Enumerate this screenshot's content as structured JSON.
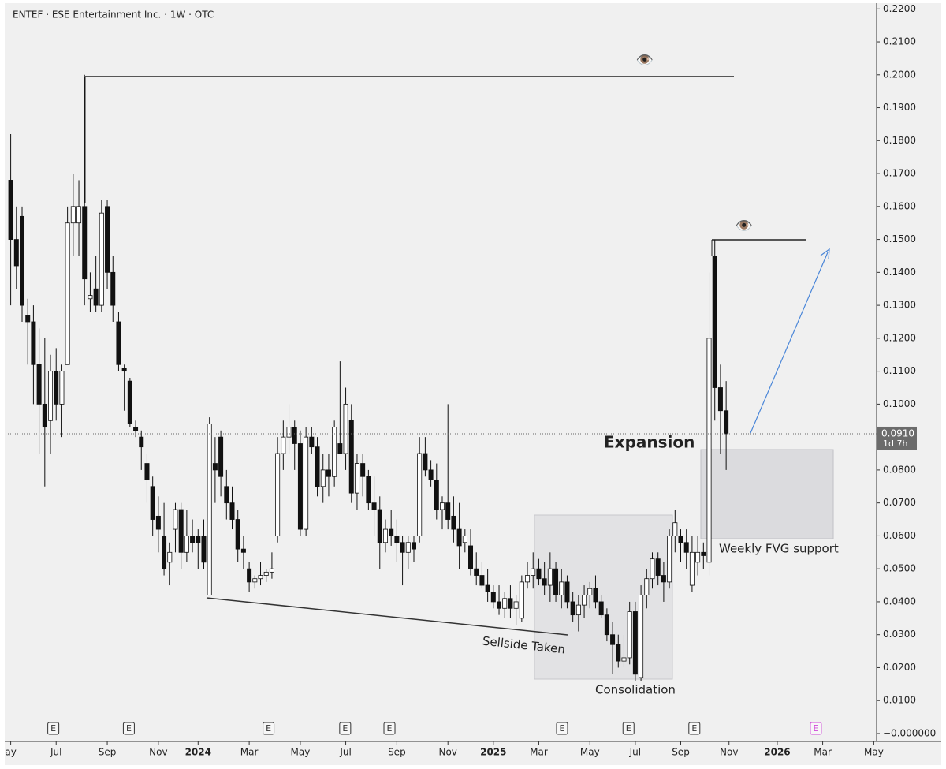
{
  "chart_data": {
    "type": "candlestick",
    "title": "ENTEF · ESE Entertainment Inc. · 1W · OTC",
    "open": [
      0.168,
      0.15,
      0.157,
      0.127,
      0.125,
      0.112,
      0.1,
      0.095,
      0.11,
      0.1,
      0.112,
      0.155,
      0.155,
      0.16,
      0.132,
      0.135,
      0.13,
      0.16,
      0.14,
      0.125,
      0.111,
      0.107,
      0.093,
      0.09,
      0.082,
      0.075,
      0.066,
      0.06,
      0.052,
      0.062,
      0.068,
      0.055,
      0.06,
      0.06,
      0.06,
      0.042,
      0.082,
      0.09,
      0.075,
      0.07,
      0.065,
      0.056,
      0.05,
      0.046,
      0.047,
      0.048,
      0.049,
      0.06,
      0.085,
      0.09,
      0.093,
      0.088,
      0.062,
      0.09,
      0.087,
      0.075,
      0.08,
      0.078,
      0.088,
      0.085,
      0.095,
      0.073,
      0.082,
      0.078,
      0.07,
      0.068,
      0.058,
      0.062,
      0.06,
      0.058,
      0.055,
      0.058,
      0.06,
      0.085,
      0.08,
      0.077,
      0.068,
      0.07,
      0.066,
      0.062,
      0.058,
      0.057,
      0.05,
      0.048,
      0.045,
      0.043,
      0.04,
      0.038,
      0.041,
      0.038,
      0.035,
      0.046,
      0.048,
      0.05,
      0.047,
      0.045,
      0.05,
      0.042,
      0.046,
      0.04,
      0.036,
      0.039,
      0.042,
      0.044,
      0.04,
      0.036,
      0.03,
      0.027,
      0.022,
      0.023,
      0.037,
      0.017,
      0.042,
      0.047,
      0.053,
      0.048,
      0.046,
      0.06,
      0.06,
      0.058,
      0.045,
      0.052,
      0.055,
      0.052,
      0.145,
      0.105,
      0.098
    ],
    "high": [
      0.182,
      0.16,
      0.16,
      0.132,
      0.13,
      0.123,
      0.12,
      0.115,
      0.117,
      0.112,
      0.16,
      0.17,
      0.168,
      0.2,
      0.14,
      0.145,
      0.162,
      0.162,
      0.145,
      0.128,
      0.112,
      0.108,
      0.095,
      0.092,
      0.085,
      0.078,
      0.072,
      0.07,
      0.058,
      0.07,
      0.07,
      0.068,
      0.065,
      0.062,
      0.065,
      0.096,
      0.09,
      0.092,
      0.08,
      0.075,
      0.068,
      0.06,
      0.052,
      0.048,
      0.052,
      0.05,
      0.055,
      0.09,
      0.095,
      0.1,
      0.095,
      0.092,
      0.093,
      0.093,
      0.09,
      0.085,
      0.085,
      0.095,
      0.113,
      0.105,
      0.1,
      0.085,
      0.085,
      0.08,
      0.078,
      0.072,
      0.065,
      0.068,
      0.065,
      0.06,
      0.06,
      0.06,
      0.09,
      0.09,
      0.083,
      0.082,
      0.072,
      0.1,
      0.072,
      0.07,
      0.062,
      0.062,
      0.055,
      0.052,
      0.05,
      0.045,
      0.045,
      0.043,
      0.045,
      0.042,
      0.048,
      0.052,
      0.055,
      0.053,
      0.052,
      0.055,
      0.052,
      0.05,
      0.048,
      0.043,
      0.042,
      0.045,
      0.046,
      0.048,
      0.042,
      0.038,
      0.034,
      0.03,
      0.03,
      0.04,
      0.04,
      0.045,
      0.05,
      0.055,
      0.055,
      0.052,
      0.062,
      0.068,
      0.062,
      0.062,
      0.06,
      0.06,
      0.058,
      0.14,
      0.15,
      0.112,
      0.107
    ],
    "low": [
      0.13,
      0.135,
      0.125,
      0.112,
      0.1,
      0.085,
      0.075,
      0.085,
      0.095,
      0.09,
      0.112,
      0.145,
      0.145,
      0.13,
      0.128,
      0.128,
      0.128,
      0.135,
      0.125,
      0.11,
      0.098,
      0.093,
      0.09,
      0.08,
      0.07,
      0.06,
      0.055,
      0.048,
      0.045,
      0.055,
      0.05,
      0.052,
      0.055,
      0.05,
      0.05,
      0.042,
      0.07,
      0.072,
      0.065,
      0.062,
      0.052,
      0.05,
      0.043,
      0.044,
      0.045,
      0.046,
      0.047,
      0.058,
      0.08,
      0.085,
      0.08,
      0.06,
      0.06,
      0.085,
      0.072,
      0.07,
      0.072,
      0.075,
      0.085,
      0.08,
      0.07,
      0.068,
      0.072,
      0.068,
      0.06,
      0.05,
      0.055,
      0.057,
      0.052,
      0.045,
      0.05,
      0.052,
      0.058,
      0.078,
      0.075,
      0.065,
      0.062,
      0.062,
      0.058,
      0.05,
      0.055,
      0.048,
      0.045,
      0.044,
      0.04,
      0.038,
      0.036,
      0.035,
      0.035,
      0.033,
      0.034,
      0.044,
      0.044,
      0.045,
      0.042,
      0.04,
      0.04,
      0.038,
      0.038,
      0.034,
      0.031,
      0.035,
      0.038,
      0.038,
      0.035,
      0.028,
      0.018,
      0.02,
      0.02,
      0.021,
      0.016,
      0.016,
      0.038,
      0.044,
      0.045,
      0.04,
      0.044,
      0.055,
      0.052,
      0.05,
      0.043,
      0.048,
      0.05,
      0.048,
      0.095,
      0.085,
      0.08
    ],
    "close": [
      0.15,
      0.142,
      0.13,
      0.125,
      0.112,
      0.1,
      0.093,
      0.11,
      0.1,
      0.11,
      0.155,
      0.16,
      0.16,
      0.138,
      0.133,
      0.13,
      0.158,
      0.14,
      0.13,
      0.112,
      0.11,
      0.094,
      0.092,
      0.087,
      0.077,
      0.065,
      0.062,
      0.05,
      0.055,
      0.068,
      0.055,
      0.06,
      0.058,
      0.058,
      0.052,
      0.094,
      0.08,
      0.078,
      0.07,
      0.065,
      0.056,
      0.055,
      0.046,
      0.047,
      0.048,
      0.049,
      0.05,
      0.085,
      0.09,
      0.093,
      0.088,
      0.062,
      0.09,
      0.087,
      0.075,
      0.08,
      0.078,
      0.093,
      0.085,
      0.1,
      0.073,
      0.082,
      0.078,
      0.07,
      0.068,
      0.058,
      0.062,
      0.06,
      0.058,
      0.055,
      0.058,
      0.056,
      0.085,
      0.08,
      0.077,
      0.068,
      0.07,
      0.065,
      0.062,
      0.057,
      0.06,
      0.05,
      0.048,
      0.045,
      0.043,
      0.04,
      0.038,
      0.041,
      0.038,
      0.04,
      0.046,
      0.048,
      0.05,
      0.047,
      0.045,
      0.05,
      0.042,
      0.046,
      0.04,
      0.036,
      0.039,
      0.042,
      0.044,
      0.04,
      0.036,
      0.03,
      0.027,
      0.022,
      0.023,
      0.037,
      0.018,
      0.042,
      0.047,
      0.053,
      0.048,
      0.046,
      0.06,
      0.064,
      0.058,
      0.055,
      0.055,
      0.055,
      0.054,
      0.12,
      0.105,
      0.098,
      0.091
    ],
    "xlim": [
      -0.5,
      152.5
    ],
    "xticks": [
      {
        "value": 0,
        "label": "ay"
      },
      {
        "value": 8,
        "label": "Jul"
      },
      {
        "value": 17,
        "label": "Sep"
      },
      {
        "value": 26,
        "label": "Nov"
      },
      {
        "value": 33,
        "label": "2024"
      },
      {
        "value": 42,
        "label": "Mar"
      },
      {
        "value": 51,
        "label": "May"
      },
      {
        "value": 59,
        "label": "Jul"
      },
      {
        "value": 68,
        "label": "Sep"
      },
      {
        "value": 77,
        "label": "Nov"
      },
      {
        "value": 85,
        "label": "2025"
      },
      {
        "value": 93,
        "label": "Mar"
      },
      {
        "value": 102,
        "label": "May"
      },
      {
        "value": 110,
        "label": "Jul"
      },
      {
        "value": 118,
        "label": "Sep"
      },
      {
        "value": 126.5,
        "label": "Nov"
      },
      {
        "value": 135,
        "label": "2026"
      },
      {
        "value": 143,
        "label": "Mar"
      },
      {
        "value": 152,
        "label": "May"
      }
    ],
    "ylim": [
      -0.0024,
      0.2227
    ],
    "yticks": [
      {
        "value": 0,
        "label": "−0.000000"
      },
      {
        "value": 0.01,
        "label": "0.0100"
      },
      {
        "value": 0.02,
        "label": "0.0200"
      },
      {
        "value": 0.03,
        "label": "0.0300"
      },
      {
        "value": 0.04,
        "label": "0.0400"
      },
      {
        "value": 0.05,
        "label": "0.0500"
      },
      {
        "value": 0.06,
        "label": "0.0600"
      },
      {
        "value": 0.07,
        "label": "0.0700"
      },
      {
        "value": 0.08,
        "label": "0.0800"
      },
      {
        "value": 0.09,
        "label": "0.0900"
      },
      {
        "value": 0.1,
        "label": "0.1000"
      },
      {
        "value": 0.11,
        "label": "0.1100"
      },
      {
        "value": 0.12,
        "label": "0.1200"
      },
      {
        "value": 0.13,
        "label": "0.1300"
      },
      {
        "value": 0.14,
        "label": "0.1400"
      },
      {
        "value": 0.15,
        "label": "0.1500"
      },
      {
        "value": 0.16,
        "label": "0.1600"
      },
      {
        "value": 0.17,
        "label": "0.1700"
      },
      {
        "value": 0.18,
        "label": "0.1800"
      },
      {
        "value": 0.19,
        "label": "0.1900"
      },
      {
        "value": 0.2,
        "label": "0.2000"
      },
      {
        "value": 0.21,
        "label": "0.2100"
      },
      {
        "value": 0.22,
        "label": "0.2200"
      }
    ],
    "last_price": {
      "value": 0.091,
      "label": "0.0910"
    },
    "countdown": "1d 7h",
    "events": [
      {
        "x": 7.5,
        "label": "E"
      },
      {
        "x": 20.8,
        "label": "E"
      },
      {
        "x": 45.4,
        "label": "E"
      },
      {
        "x": 58.9,
        "label": "E"
      },
      {
        "x": 66.7,
        "label": "E"
      },
      {
        "x": 97.1,
        "label": "E"
      },
      {
        "x": 108.8,
        "label": "E"
      },
      {
        "x": 120.4,
        "label": "E"
      },
      {
        "x": 141.8,
        "label": "E"
      }
    ],
    "annotations": [
      "Expansion",
      "Weekly FVG support",
      "Sellside Taken",
      "Consolidation"
    ]
  }
}
